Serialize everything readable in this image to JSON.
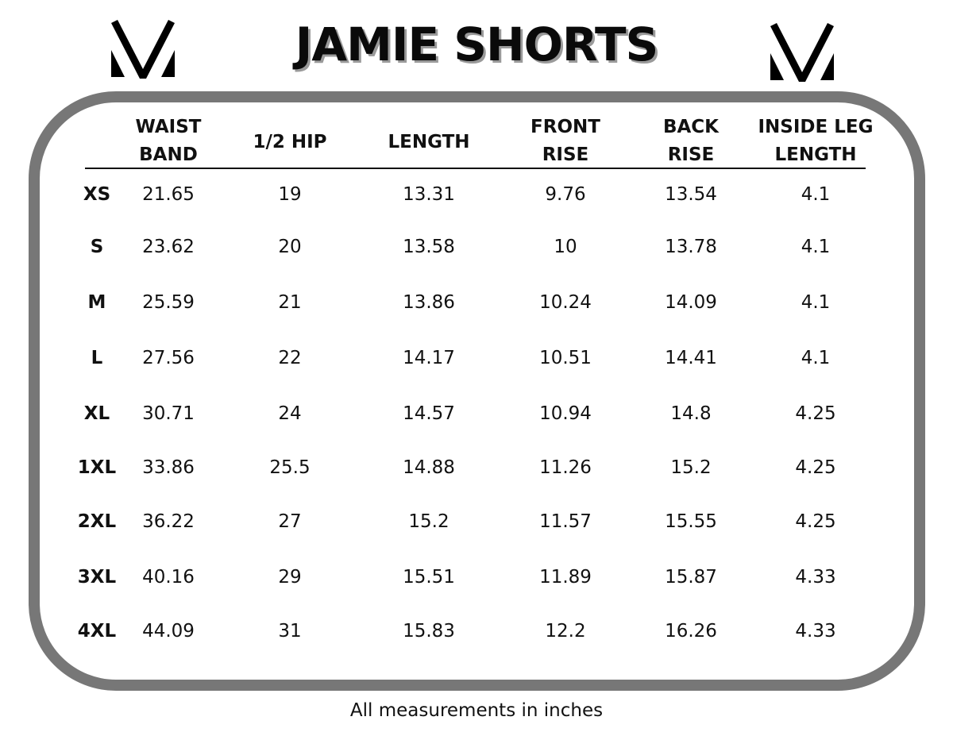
{
  "title": "JAMIE SHORTS",
  "logo": {
    "text": "V",
    "icon": "v-logo-icon"
  },
  "columns": [
    {
      "key": "size",
      "label": ""
    },
    {
      "key": "waist",
      "label": "WAIST BAND"
    },
    {
      "key": "hip",
      "label": "1/2 HIP"
    },
    {
      "key": "length",
      "label": "LENGTH"
    },
    {
      "key": "front",
      "label": "FRONT RISE"
    },
    {
      "key": "back",
      "label": "BACK RISE"
    },
    {
      "key": "inside",
      "label": "INSIDE LEG LENGTH"
    }
  ],
  "header_lines": [
    [],
    [
      "WAIST",
      "BAND"
    ],
    [
      "1/2 HIP"
    ],
    [
      "LENGTH"
    ],
    [
      "FRONT",
      "RISE"
    ],
    [
      "BACK",
      "RISE"
    ],
    [
      "INSIDE LEG",
      "LENGTH"
    ]
  ],
  "rows": [
    [
      "XS",
      "21.65",
      "19",
      "13.31",
      "9.76",
      "13.54",
      "4.1"
    ],
    [
      "S",
      "23.62",
      "20",
      "13.58",
      "10",
      "13.78",
      "4.1"
    ],
    [
      "M",
      "25.59",
      "21",
      "13.86",
      "10.24",
      "14.09",
      "4.1"
    ],
    [
      "L",
      "27.56",
      "22",
      "14.17",
      "10.51",
      "14.41",
      "4.1"
    ],
    [
      "XL",
      "30.71",
      "24",
      "14.57",
      "10.94",
      "14.8",
      "4.25"
    ],
    [
      "1XL",
      "33.86",
      "25.5",
      "14.88",
      "11.26",
      "15.2",
      "4.25"
    ],
    [
      "2XL",
      "36.22",
      "27",
      "15.2",
      "11.57",
      "15.55",
      "4.25"
    ],
    [
      "3XL",
      "40.16",
      "29",
      "15.51",
      "11.89",
      "15.87",
      "4.33"
    ],
    [
      "4XL",
      "44.09",
      "31",
      "15.83",
      "12.2",
      "16.26",
      "4.33"
    ]
  ],
  "footer": "All measurements in inches",
  "colors": {
    "frame": "#777777",
    "text": "#111111",
    "title_shadow": "#9a9a9a"
  }
}
